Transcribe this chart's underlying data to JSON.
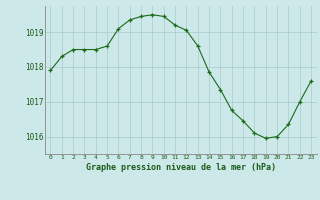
{
  "x": [
    0,
    1,
    2,
    3,
    4,
    5,
    6,
    7,
    8,
    9,
    10,
    11,
    12,
    13,
    14,
    15,
    16,
    17,
    18,
    19,
    20,
    21,
    22,
    23
  ],
  "y": [
    1017.9,
    1018.3,
    1018.5,
    1018.5,
    1018.5,
    1018.6,
    1019.1,
    1019.35,
    1019.45,
    1019.5,
    1019.45,
    1019.2,
    1019.05,
    1018.6,
    1017.85,
    1017.35,
    1016.75,
    1016.45,
    1016.1,
    1015.95,
    1016.0,
    1016.35,
    1017.0,
    1017.6
  ],
  "line_color": "#1a6b1a",
  "marker": "+",
  "bg_color": "#cce8e8",
  "grid_color": "#b0d0d0",
  "xlabel": "Graphe pression niveau de la mer (hPa)",
  "xlabel_color": "#1a5c1a",
  "tick_color": "#1a5c1a",
  "ylim": [
    1015.5,
    1019.75
  ],
  "xlim": [
    -0.5,
    23.5
  ],
  "yticks": [
    1016,
    1017,
    1018,
    1019
  ],
  "xticks": [
    0,
    1,
    2,
    3,
    4,
    5,
    6,
    7,
    8,
    9,
    10,
    11,
    12,
    13,
    14,
    15,
    16,
    17,
    18,
    19,
    20,
    21,
    22,
    23
  ],
  "xtick_labels": [
    "0",
    "1",
    "2",
    "3",
    "4",
    "5",
    "6",
    "7",
    "8",
    "9",
    "10",
    "11",
    "12",
    "13",
    "14",
    "15",
    "16",
    "17",
    "18",
    "19",
    "20",
    "21",
    "22",
    "23"
  ]
}
